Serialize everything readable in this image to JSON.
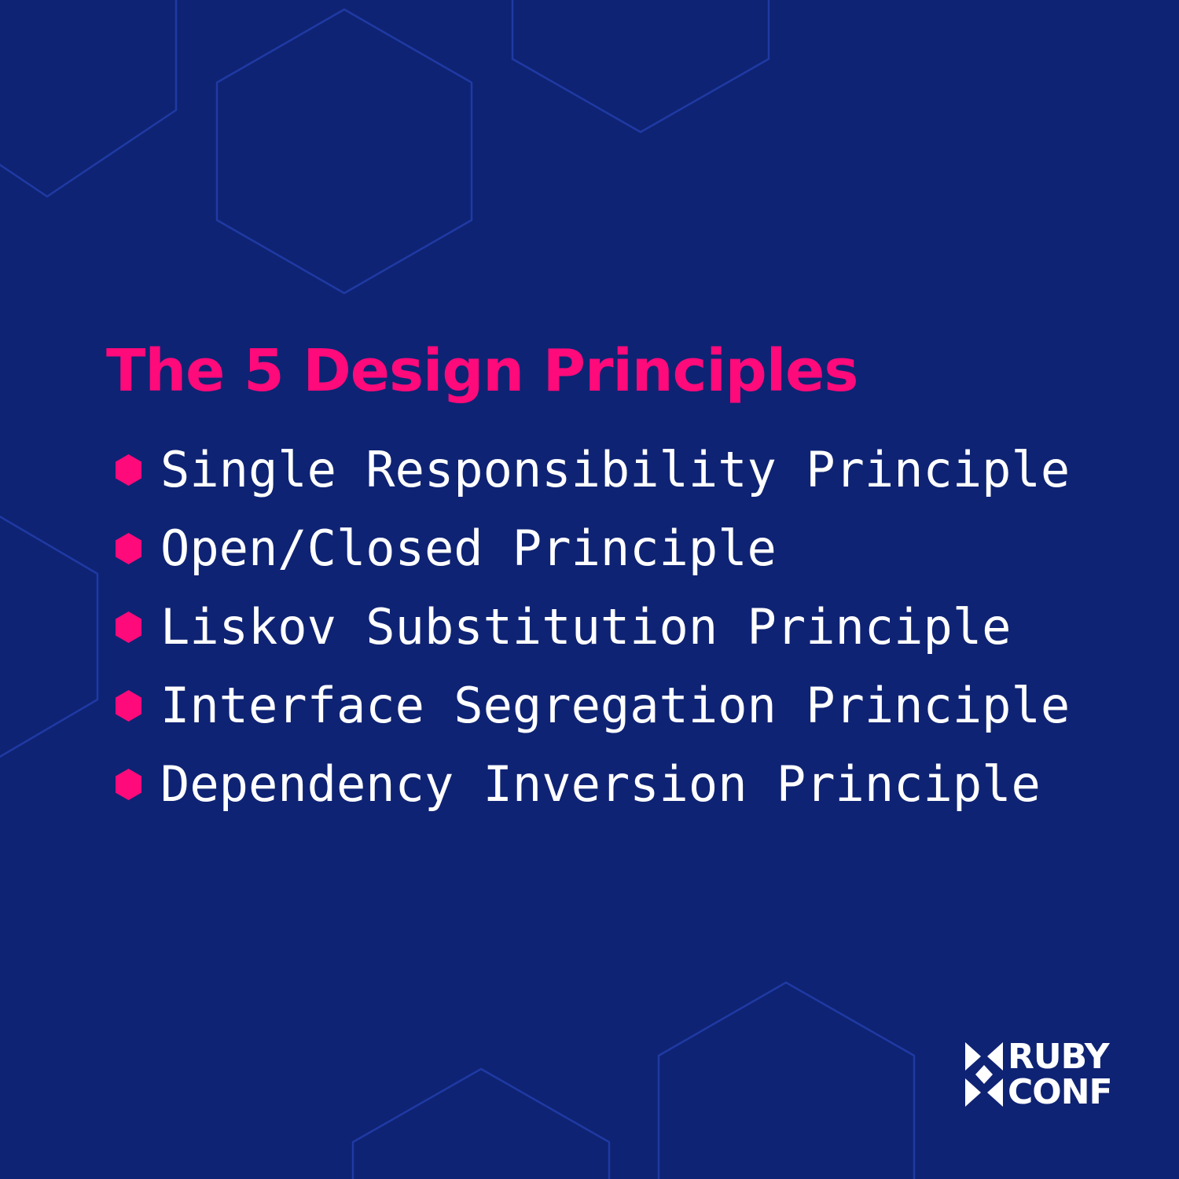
{
  "colors": {
    "background": "#0f2374",
    "accent": "#ff0a7a",
    "pattern_stroke": "#1f3aa3",
    "text": "#ffffff"
  },
  "title": "The 5 Design Principles",
  "principles": [
    {
      "icon": "hexagon-bullet-icon",
      "label": "Single Responsibility Principle"
    },
    {
      "icon": "hexagon-bullet-icon",
      "label": "Open/Closed Principle"
    },
    {
      "icon": "hexagon-bullet-icon",
      "label": "Liskov Substitution Principle"
    },
    {
      "icon": "hexagon-bullet-icon",
      "label": "Interface Segregation Principle"
    },
    {
      "icon": "hexagon-bullet-icon",
      "label": "Dependency Inversion Principle"
    }
  ],
  "logo": {
    "icon": "rubyconf-mark-icon",
    "line1": "RUBY",
    "line2": "CONF"
  }
}
